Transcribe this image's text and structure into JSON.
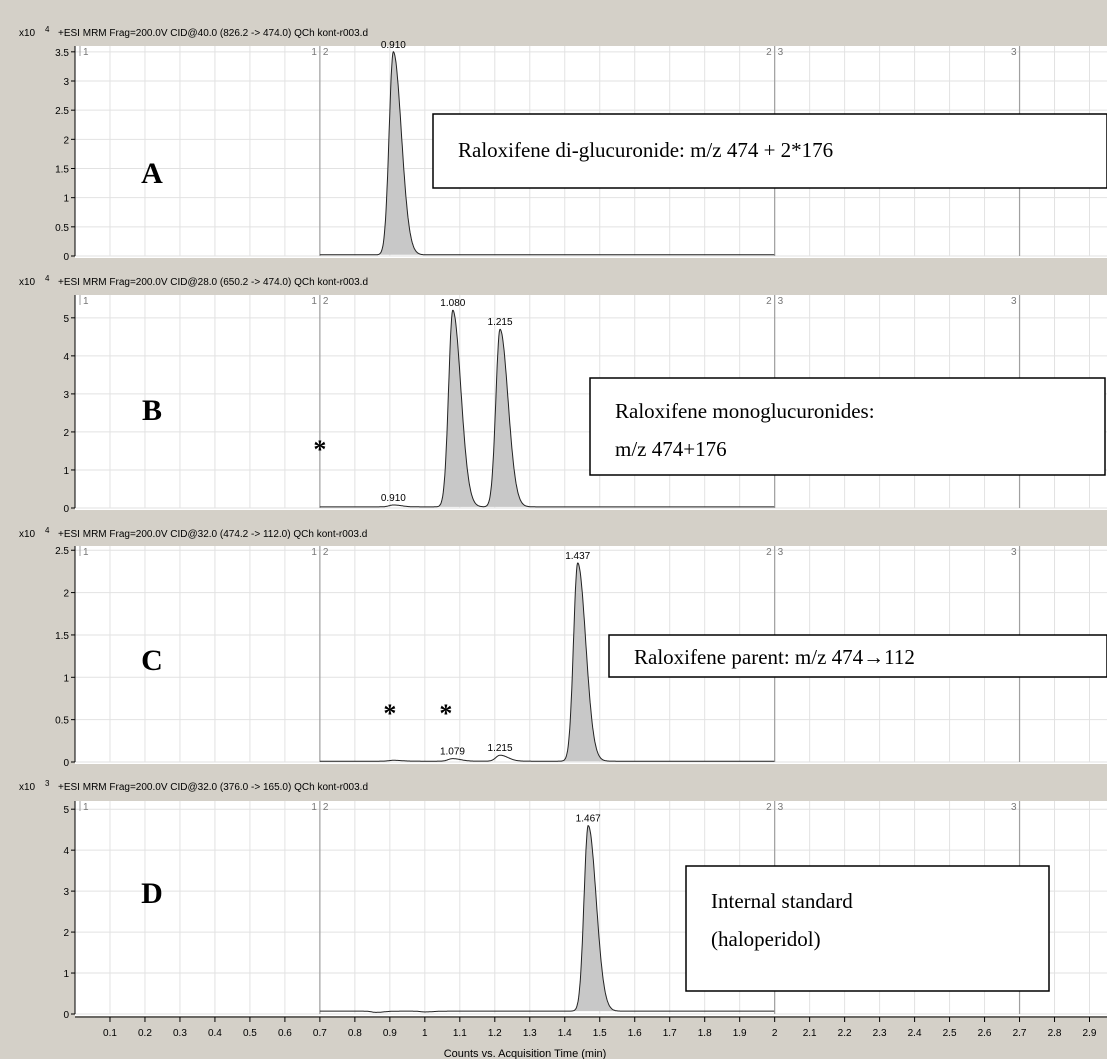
{
  "colors": {
    "background": "#d4d0c8",
    "plot_background": "#ffffff",
    "grid": "#e2e2e2",
    "segment_line": "#a0a0a0",
    "peak_fill": "#c8c8c8",
    "peak_stroke": "#222222",
    "text": "#000000"
  },
  "x_axis": {
    "label": "Counts vs. Acquisition Time (min)",
    "range": [
      0,
      2.95
    ],
    "ticks": [
      0.1,
      0.2,
      0.3,
      0.4,
      0.5,
      0.6,
      0.7,
      0.8,
      0.9,
      1,
      1.1,
      1.2,
      1.3,
      1.4,
      1.5,
      1.6,
      1.7,
      1.8,
      1.9,
      2,
      2.1,
      2.2,
      2.3,
      2.4,
      2.5,
      2.6,
      2.7,
      2.8,
      2.9
    ],
    "tick_labels": [
      "0.1",
      "0.2",
      "0.3",
      "0.4",
      "0.5",
      "0.6",
      "0.7",
      "0.8",
      "0.9",
      "1",
      "1.1",
      "1.2",
      "1.3",
      "1.4",
      "1.5",
      "1.6",
      "1.7",
      "1.8",
      "1.9",
      "2",
      "2.1",
      "2.2",
      "2.3",
      "2.4",
      "2.5",
      "2.6",
      "2.7",
      "2.8",
      "2.9"
    ]
  },
  "segment_markers": [
    {
      "x": 0.7,
      "left": "1",
      "right": "2"
    },
    {
      "x": 2.0,
      "left": "2",
      "right": "3"
    },
    {
      "x": 2.7,
      "left": "3",
      "right": ""
    }
  ],
  "start_marker": "1",
  "chart_data": [
    {
      "type": "line",
      "panel_letter": "A",
      "header": "+ESI MRM Frag=200.0V CID@40.0 (826.2 -> 474.0) QCh kont-r003.d",
      "y_multiplier_base": "x10",
      "y_multiplier_exp": "4",
      "ylim": [
        0,
        3.6
      ],
      "yticks": [
        0,
        0.5,
        1,
        1.5,
        2,
        2.5,
        3,
        3.5
      ],
      "ytick_labels": [
        "0",
        "0.5",
        "1",
        "1.5",
        "2",
        "2.5",
        "3",
        "3.5"
      ],
      "trace_range": [
        0.7,
        2.0
      ],
      "baseline": 0.02,
      "peaks": [
        {
          "rt": 0.91,
          "height": 3.5,
          "label": "0.910",
          "shaded": true
        }
      ],
      "stars": [],
      "annotation": [
        "Raloxifene di-glucuronide: m/z 474 + 2*176"
      ]
    },
    {
      "type": "line",
      "panel_letter": "B",
      "header": "+ESI MRM Frag=200.0V CID@28.0 (650.2 -> 474.0) QCh kont-r003.d",
      "y_multiplier_base": "x10",
      "y_multiplier_exp": "4",
      "ylim": [
        0,
        5.6
      ],
      "yticks": [
        0,
        1,
        2,
        3,
        4,
        5
      ],
      "ytick_labels": [
        "0",
        "1",
        "2",
        "3",
        "4",
        "5"
      ],
      "trace_range": [
        0.7,
        2.0
      ],
      "baseline": 0.03,
      "peaks": [
        {
          "rt": 0.91,
          "height": 0.08,
          "label": "0.910",
          "shaded": false
        },
        {
          "rt": 1.08,
          "height": 5.2,
          "label": "1.080",
          "shaded": true
        },
        {
          "rt": 1.215,
          "height": 4.7,
          "label": "1.215",
          "shaded": true
        }
      ],
      "stars": [
        0.7
      ],
      "annotation": [
        "Raloxifene monoglucuronides:",
        " m/z 474+176"
      ]
    },
    {
      "type": "line",
      "panel_letter": "C",
      "header": "+ESI MRM Frag=200.0V CID@32.0 (474.2 -> 112.0) QCh kont-r003.d",
      "y_multiplier_base": "x10",
      "y_multiplier_exp": "4",
      "ylim": [
        0,
        2.55
      ],
      "yticks": [
        0,
        0.5,
        1,
        1.5,
        2,
        2.5
      ],
      "ytick_labels": [
        "0",
        "0.5",
        "1",
        "1.5",
        "2",
        "2.5"
      ],
      "trace_range": [
        0.7,
        2.0
      ],
      "baseline": 0.01,
      "peaks": [
        {
          "rt": 0.91,
          "height": 0.02,
          "label": "",
          "shaded": false
        },
        {
          "rt": 1.079,
          "height": 0.04,
          "label": "1.079",
          "shaded": false
        },
        {
          "rt": 1.215,
          "height": 0.08,
          "label": "1.215",
          "shaded": false
        },
        {
          "rt": 1.437,
          "height": 2.35,
          "label": "1.437",
          "shaded": true
        }
      ],
      "stars": [
        0.9,
        1.06
      ],
      "annotation": [
        "Raloxifene parent: m/z 474→112"
      ]
    },
    {
      "type": "line",
      "panel_letter": "D",
      "header": "+ESI MRM Frag=200.0V CID@32.0 (376.0 -> 165.0) QCh kont-r003.d",
      "y_multiplier_base": "x10",
      "y_multiplier_exp": "3",
      "ylim": [
        0,
        5.2
      ],
      "yticks": [
        0,
        1,
        2,
        3,
        4,
        5
      ],
      "ytick_labels": [
        "0",
        "1",
        "2",
        "3",
        "4",
        "5"
      ],
      "trace_range": [
        0.7,
        2.0
      ],
      "baseline": 0.07,
      "peaks": [
        {
          "rt": 0.86,
          "height": 0.04,
          "label": "",
          "shaded": false
        },
        {
          "rt": 1.0,
          "height": 0.05,
          "label": "",
          "shaded": false
        },
        {
          "rt": 1.467,
          "height": 4.6,
          "label": "1.467",
          "shaded": true
        }
      ],
      "stars": [],
      "annotation": [
        "Internal standard",
        "(haloperidol)"
      ]
    }
  ]
}
